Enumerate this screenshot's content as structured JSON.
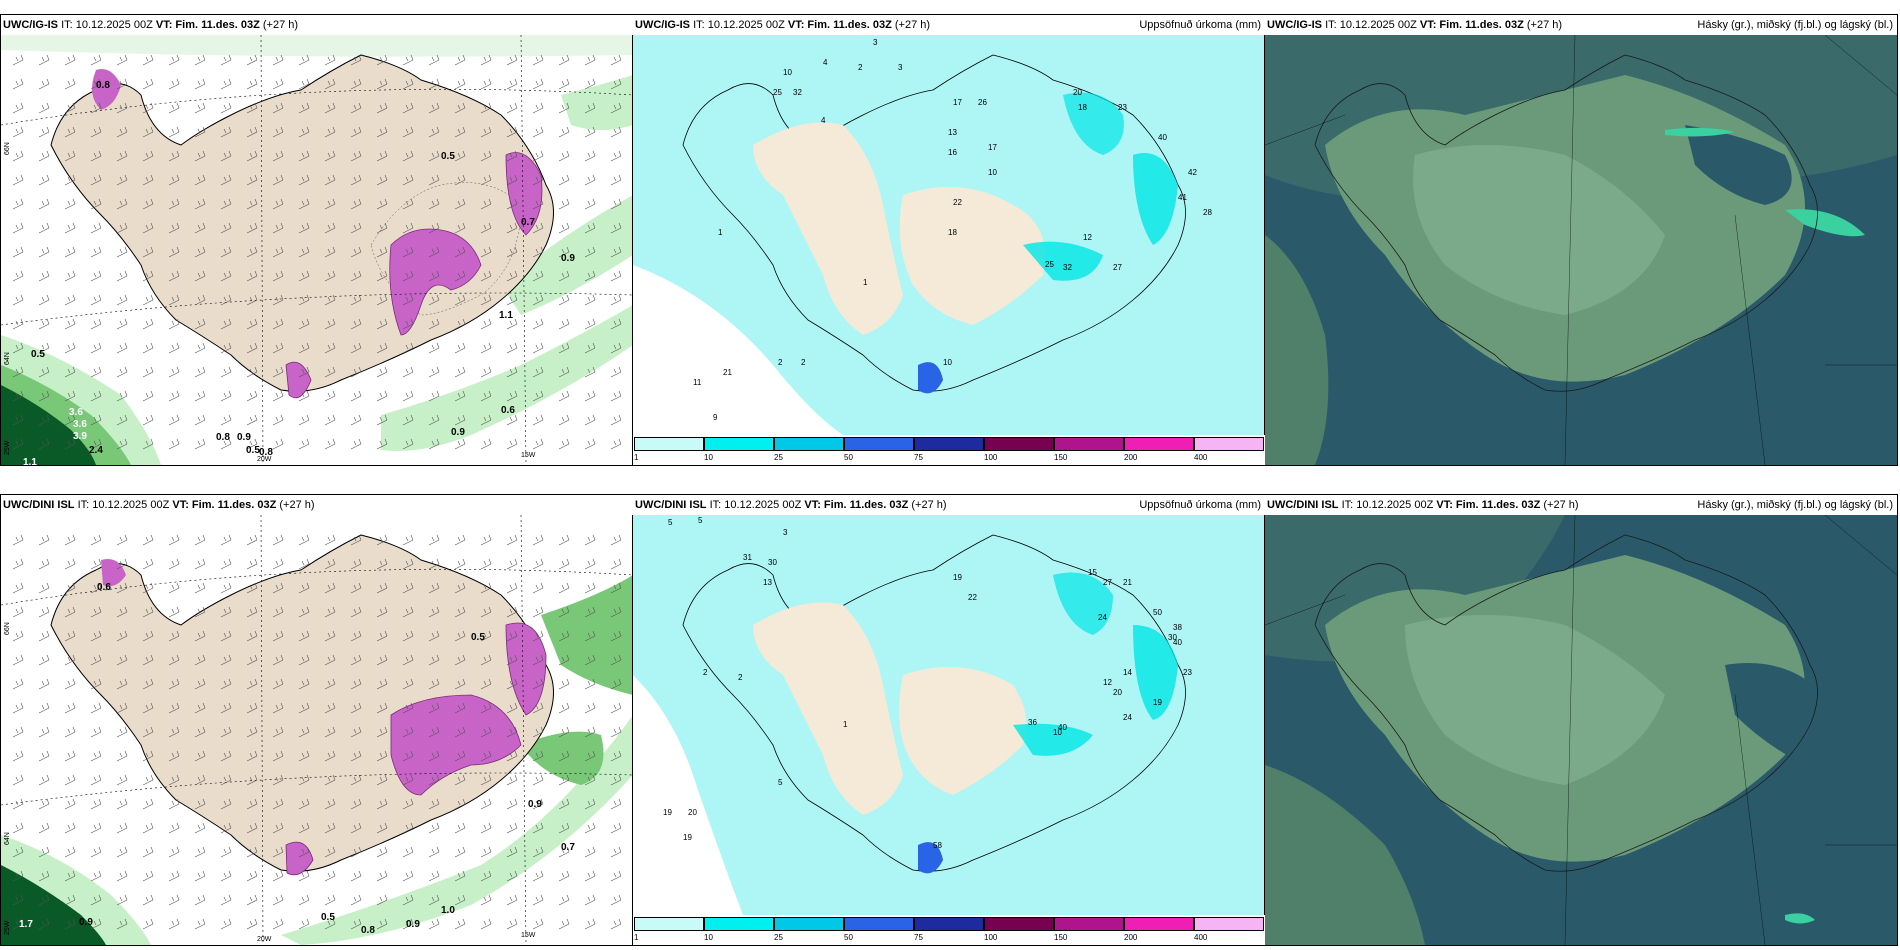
{
  "rows": [
    {
      "model": "UWC/IG-IS",
      "init": "IT: 10.12.2025 00Z",
      "valid": "VT: Fim. 11.des. 03Z",
      "lead": "(+27 h)",
      "precip_title": "Uppsöfnuð úrkoma (mm)",
      "cloud_title": "Hásky (gr.), miðský (fj.bl.) og lágský (bl.)",
      "wind_values": [
        "0.8",
        "0.5",
        "0.5",
        "3.6",
        "3.6",
        "3.9",
        "1.1",
        "2.4",
        "0.8",
        "0.9",
        "0.5",
        "0.8",
        "0.6",
        "0.9",
        "0.9",
        "0.7",
        "1.1"
      ],
      "precip_amounts": [
        "3",
        "4",
        "2",
        "3",
        "4",
        "10",
        "25",
        "32",
        "17",
        "26",
        "20",
        "18",
        "23",
        "40",
        "42",
        "41",
        "28",
        "13",
        "16",
        "17",
        "10",
        "22",
        "18",
        "12",
        "25",
        "32",
        "27",
        "2",
        "2",
        "21",
        "11",
        "9",
        "1",
        "1",
        "10"
      ]
    },
    {
      "model": "UWC/DINI ISL",
      "init": "IT: 10.12.2025 00Z",
      "valid": "VT: Fim. 11.des. 03Z",
      "lead": "(+27 h)",
      "precip_title": "Uppsöfnuð úrkoma (mm)",
      "cloud_title": "Hásky (gr.), miðský (fj.bl.) og lágský (bl.)",
      "wind_values": [
        "0.5",
        "1.7",
        "0.9",
        "0.5",
        "0.8",
        "0.9",
        "1.0",
        "0.9",
        "0.7",
        "0.6"
      ],
      "precip_amounts": [
        "5",
        "5",
        "3",
        "2",
        "31",
        "30",
        "13",
        "19",
        "22",
        "24",
        "15",
        "27",
        "21",
        "50",
        "38",
        "40",
        "30",
        "23",
        "10",
        "12",
        "14",
        "20",
        "36",
        "40",
        "24",
        "19",
        "5",
        "19",
        "20",
        "19",
        "2",
        "1",
        "58"
      ]
    }
  ],
  "lon_labels": [
    "20W",
    "15W"
  ],
  "lat_labels": [
    "66N",
    "64N"
  ],
  "edge_lon_labels": [
    "25W"
  ],
  "colorbar": {
    "ticks": [
      "1",
      "10",
      "25",
      "50",
      "75",
      "100",
      "150",
      "200",
      "400"
    ],
    "colors": [
      "#c8fafa",
      "#00f0f0",
      "#00c8e6",
      "#2a64e6",
      "#1e2aa0",
      "#780050",
      "#b0148c",
      "#f01eb4",
      "#f5b4f5"
    ]
  },
  "colors": {
    "land": "#e9dccb",
    "sea": "#ffffff",
    "precip_light": "#aef5f5",
    "precip_mid": "#00e6e6",
    "purple": "#c864c8",
    "green_light": "#c8f0c8",
    "green_mid": "#78c878",
    "green_dark": "#0a5a28",
    "cloud_dark": "#2a5a6a",
    "cloud_mid": "#5a8a7a",
    "cloud_light": "#7aaa8a"
  }
}
